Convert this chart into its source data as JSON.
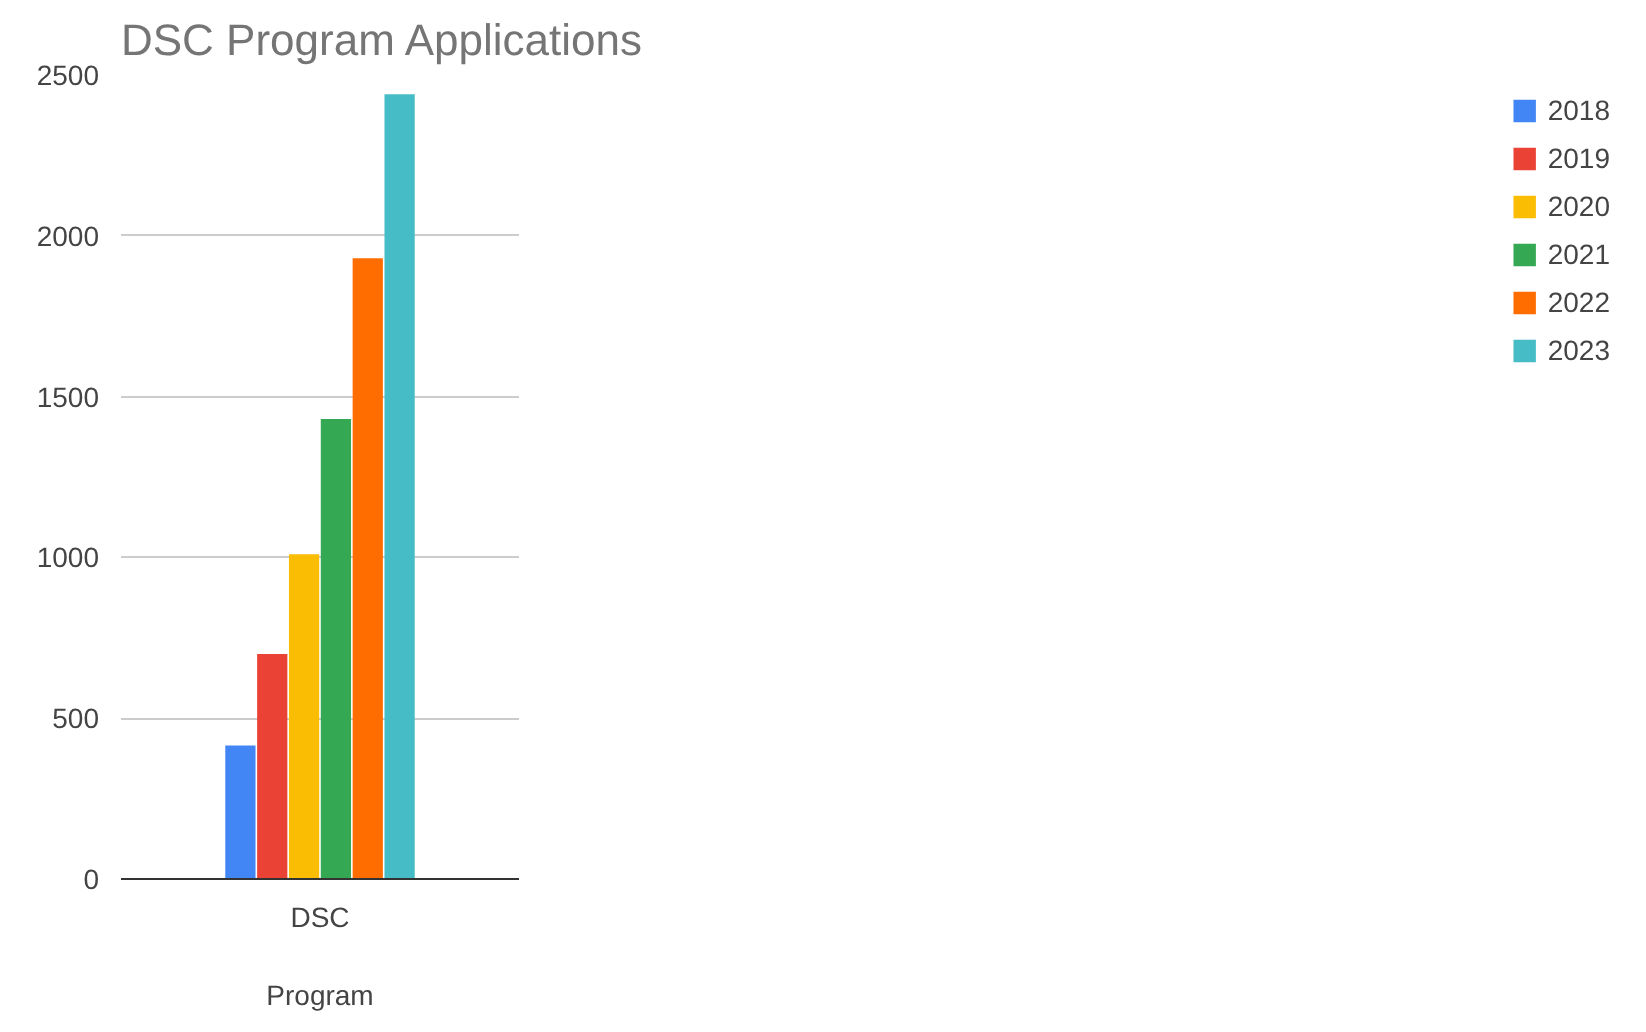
{
  "chart_data": {
    "type": "bar",
    "title": "DSC Program Applications",
    "xlabel": "Program",
    "categories": [
      "DSC"
    ],
    "series": [
      {
        "name": "2018",
        "color": "#4285f4",
        "values": [
          415
        ]
      },
      {
        "name": "2019",
        "color": "#ea4335",
        "values": [
          700
        ]
      },
      {
        "name": "2020",
        "color": "#fbbc04",
        "values": [
          1010
        ]
      },
      {
        "name": "2021",
        "color": "#34a853",
        "values": [
          1430
        ]
      },
      {
        "name": "2022",
        "color": "#ff6d01",
        "values": [
          1930
        ]
      },
      {
        "name": "2023",
        "color": "#46bdc6",
        "values": [
          2440
        ]
      }
    ],
    "ylim": [
      0,
      2500
    ],
    "yticks": [
      0,
      500,
      1000,
      1500,
      2000,
      2500
    ],
    "grid": "y",
    "legend": "right"
  }
}
